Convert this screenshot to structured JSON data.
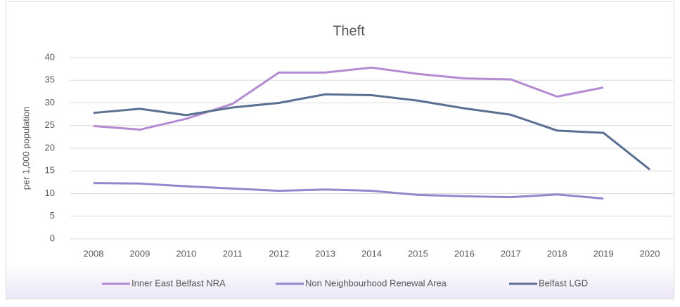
{
  "chart_data": {
    "type": "line",
    "title": "Theft",
    "y_label": "per 1,000 population",
    "categories": [
      "2008",
      "2009",
      "2010",
      "2011",
      "2012",
      "2013",
      "2014",
      "2015",
      "2016",
      "2017",
      "2018",
      "2019",
      "2020"
    ],
    "series": [
      {
        "name": "Inner East Belfast NRA",
        "color": "#b48bd2",
        "values": [
          24.9,
          24.1,
          26.5,
          29.8,
          36.7,
          36.7,
          37.8,
          36.4,
          35.4,
          35.2,
          31.4,
          33.4,
          null
        ]
      },
      {
        "name": "Non Neighbourhood Renewal Area",
        "color": "#8f88cc",
        "values": [
          12.3,
          12.2,
          11.6,
          11.1,
          10.6,
          10.9,
          10.6,
          9.7,
          9.4,
          9.2,
          9.8,
          8.9,
          null
        ]
      },
      {
        "name": "Belfast LGD",
        "color": "#5a6f91",
        "values": [
          27.8,
          28.7,
          27.3,
          29.0,
          30.0,
          31.9,
          31.7,
          30.5,
          28.8,
          27.4,
          23.9,
          23.4,
          15.3
        ]
      }
    ],
    "ylim": [
      0,
      40
    ],
    "yticks": [
      0,
      5,
      10,
      15,
      20,
      25,
      30,
      35,
      40
    ],
    "grid": true,
    "legend": "bottom"
  }
}
